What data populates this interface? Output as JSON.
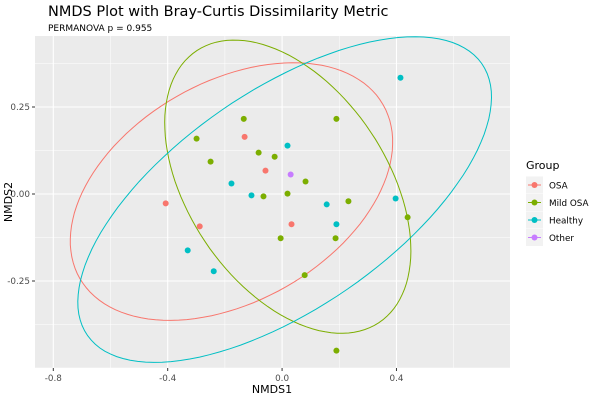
{
  "chart_data": {
    "type": "scatter",
    "title": "NMDS Plot with Bray-Curtis Dissimilarity Metric",
    "subtitle": "PERMANOVA p = 0.955",
    "xlabel": "NMDS1",
    "ylabel": "NMDS2",
    "xlim": [
      -0.864,
      0.797
    ],
    "ylim": [
      -0.5,
      0.454
    ],
    "xticks": [
      -0.8,
      -0.4,
      0.0,
      0.4
    ],
    "xtick_labels": [
      "-0.8",
      "-0.4",
      "0.0",
      "0.4"
    ],
    "yticks": [
      -0.25,
      0.0,
      0.25
    ],
    "ytick_labels": [
      "-0.25",
      "0.00",
      "0.25"
    ],
    "grid": true,
    "legend": {
      "title": "Group",
      "placement": "right"
    },
    "series": [
      {
        "name": "OSA",
        "color": "#F8766D",
        "points": [
          [
            -0.407,
            -0.027
          ],
          [
            -0.288,
            -0.093
          ],
          [
            -0.131,
            0.164
          ],
          [
            -0.058,
            0.067
          ],
          [
            0.033,
            -0.087
          ]
        ],
        "ellipse": {
          "center": [
            -0.177,
            0.007
          ],
          "axis_a": [
            0.53,
            0.25
          ],
          "axis_b": [
            0.192,
            -0.273
          ]
        }
      },
      {
        "name": "Mild OSA",
        "color": "#7CAE00",
        "points": [
          [
            -0.299,
            0.159
          ],
          [
            -0.25,
            0.093
          ],
          [
            -0.134,
            0.216
          ],
          [
            -0.082,
            0.119
          ],
          [
            -0.026,
            0.107
          ],
          [
            -0.065,
            -0.007
          ],
          [
            0.019,
            0.001
          ],
          [
            0.082,
            0.036
          ],
          [
            0.19,
            0.216
          ],
          [
            0.232,
            -0.021
          ],
          [
            0.439,
            -0.067
          ],
          [
            -0.005,
            -0.127
          ],
          [
            0.187,
            -0.127
          ],
          [
            0.079,
            -0.233
          ],
          [
            0.19,
            -0.45
          ]
        ],
        "ellipse": {
          "center": [
            0.02,
            0.021
          ],
          "axis_a": [
            0.318,
            -0.391
          ],
          "axis_b": [
            0.29,
            0.157
          ]
        }
      },
      {
        "name": "Healthy",
        "color": "#00BFC4",
        "points": [
          [
            0.414,
            0.334
          ],
          [
            0.019,
            0.139
          ],
          [
            -0.177,
            0.03
          ],
          [
            -0.107,
            -0.004
          ],
          [
            0.156,
            -0.03
          ],
          [
            0.19,
            -0.087
          ],
          [
            0.397,
            -0.013
          ],
          [
            -0.33,
            -0.162
          ],
          [
            -0.239,
            -0.222
          ]
        ],
        "ellipse": {
          "center": [
            0.009,
            -0.016
          ],
          "axis_a": [
            0.689,
            0.391
          ],
          "axis_b": [
            0.22,
            -0.257
          ]
        }
      },
      {
        "name": "Other",
        "color": "#C77CFF",
        "points": [
          [
            0.03,
            0.056
          ]
        ],
        "ellipse": null
      }
    ]
  }
}
